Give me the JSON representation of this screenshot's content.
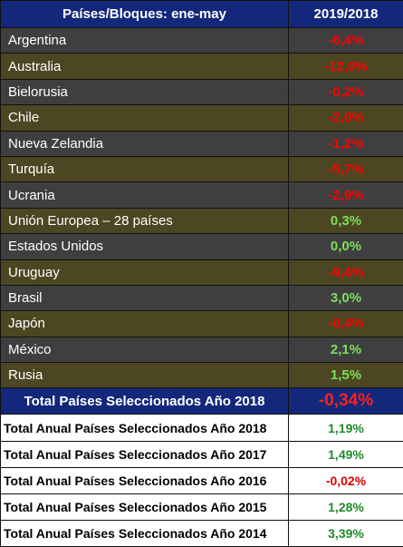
{
  "header": {
    "col1": "Países/Bloques: ene-may",
    "col2": "2019/2018"
  },
  "rows": [
    {
      "name": "Argentina",
      "value": "-6,4%",
      "sign": "neg"
    },
    {
      "name": "Australia",
      "value": "-12,0%",
      "sign": "neg"
    },
    {
      "name": "Bielorusia",
      "value": "-0,2%",
      "sign": "neg"
    },
    {
      "name": "Chile",
      "value": "-2,0%",
      "sign": "neg"
    },
    {
      "name": "Nueva Zelandia",
      "value": "-1,2%",
      "sign": "neg"
    },
    {
      "name": "Turquía",
      "value": "-5,7%",
      "sign": "neg"
    },
    {
      "name": "Ucrania",
      "value": "-2,9%",
      "sign": "neg"
    },
    {
      "name": "Unión Europea – 28 países",
      "value": "0,3%",
      "sign": "pos"
    },
    {
      "name": "Estados Unidos",
      "value": "0,0%",
      "sign": "pos"
    },
    {
      "name": "Uruguay",
      "value": "-9,4%",
      "sign": "neg"
    },
    {
      "name": "Brasil",
      "value": "3,0%",
      "sign": "pos"
    },
    {
      "name": "Japón",
      "value": "-0,4%",
      "sign": "neg"
    },
    {
      "name": "México",
      "value": "2,1%",
      "sign": "pos"
    },
    {
      "name": "Rusia",
      "value": "1,5%",
      "sign": "pos"
    }
  ],
  "total": {
    "label": "Total Países Seleccionados Año 2018",
    "value": "-0,34%"
  },
  "annual": [
    {
      "label": "Total Anual Países Seleccionados Año 2018",
      "value": "1,19%",
      "sign": "pos"
    },
    {
      "label": "Total Anual Países Seleccionados Año 2017",
      "value": "1,49%",
      "sign": "pos"
    },
    {
      "label": "Total Anual Países Seleccionados Año 2016",
      "value": "-0,02%",
      "sign": "neg"
    },
    {
      "label": "Total Anual Países Seleccionados Año 2015",
      "value": "1,28%",
      "sign": "pos"
    },
    {
      "label": "Total Anual Países Seleccionados Año 2014",
      "value": "3,39%",
      "sign": "pos"
    }
  ],
  "colors": {
    "header_bg": "#13287a",
    "row_dark": "#3f3f3f",
    "row_olive": "#4c4622",
    "negative": "#ff0000",
    "positive": "#7ce05a"
  }
}
